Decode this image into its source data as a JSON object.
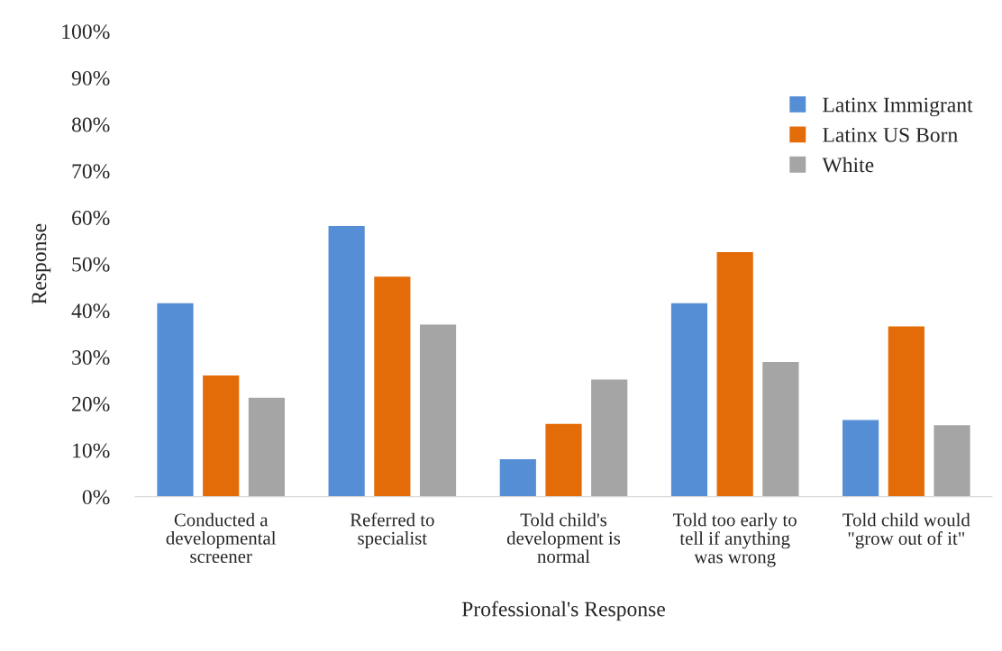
{
  "chart_data": {
    "type": "bar",
    "xlabel": "Professional's Response",
    "ylabel": "Response",
    "categories": [
      "Conducted a\ndevelopmental\nscreener",
      "Referred to\nspecialist",
      "Told child's\ndevelopment is\nnormal",
      "Told too early to\ntell if anything\nwas wrong",
      "Told child would\n\"grow out of it\""
    ],
    "series": [
      {
        "name": "Latinx Immigrant",
        "color": "#558ed5",
        "values": [
          41.7,
          58.3,
          8.2,
          41.7,
          16.6
        ]
      },
      {
        "name": "Latinx US Born",
        "color": "#e36c09",
        "values": [
          26.2,
          47.4,
          15.8,
          52.7,
          36.7
        ]
      },
      {
        "name": "White",
        "color": "#a5a5a5",
        "values": [
          21.4,
          37.1,
          25.3,
          29.1,
          15.5
        ]
      }
    ],
    "ylim": [
      0,
      100
    ],
    "yticks": [
      {
        "value": 0,
        "label": "0%"
      },
      {
        "value": 10,
        "label": "10%"
      },
      {
        "value": 20,
        "label": "20%"
      },
      {
        "value": 30,
        "label": "30%"
      },
      {
        "value": 40,
        "label": "40%"
      },
      {
        "value": 50,
        "label": "50%"
      },
      {
        "value": 60,
        "label": "60%"
      },
      {
        "value": 70,
        "label": "70%"
      },
      {
        "value": 80,
        "label": "80%"
      },
      {
        "value": 90,
        "label": "90%"
      },
      {
        "value": 100,
        "label": "100%"
      }
    ],
    "grid": false,
    "legend": "top right"
  }
}
